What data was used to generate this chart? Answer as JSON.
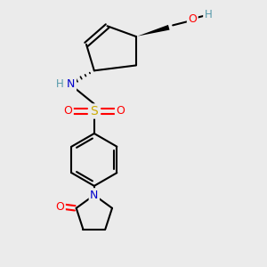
{
  "bg_color": "#ebebeb",
  "atom_colors": {
    "C": "#000000",
    "N": "#0000cc",
    "O": "#ff0000",
    "S": "#ccaa00",
    "H": "#5599aa"
  }
}
